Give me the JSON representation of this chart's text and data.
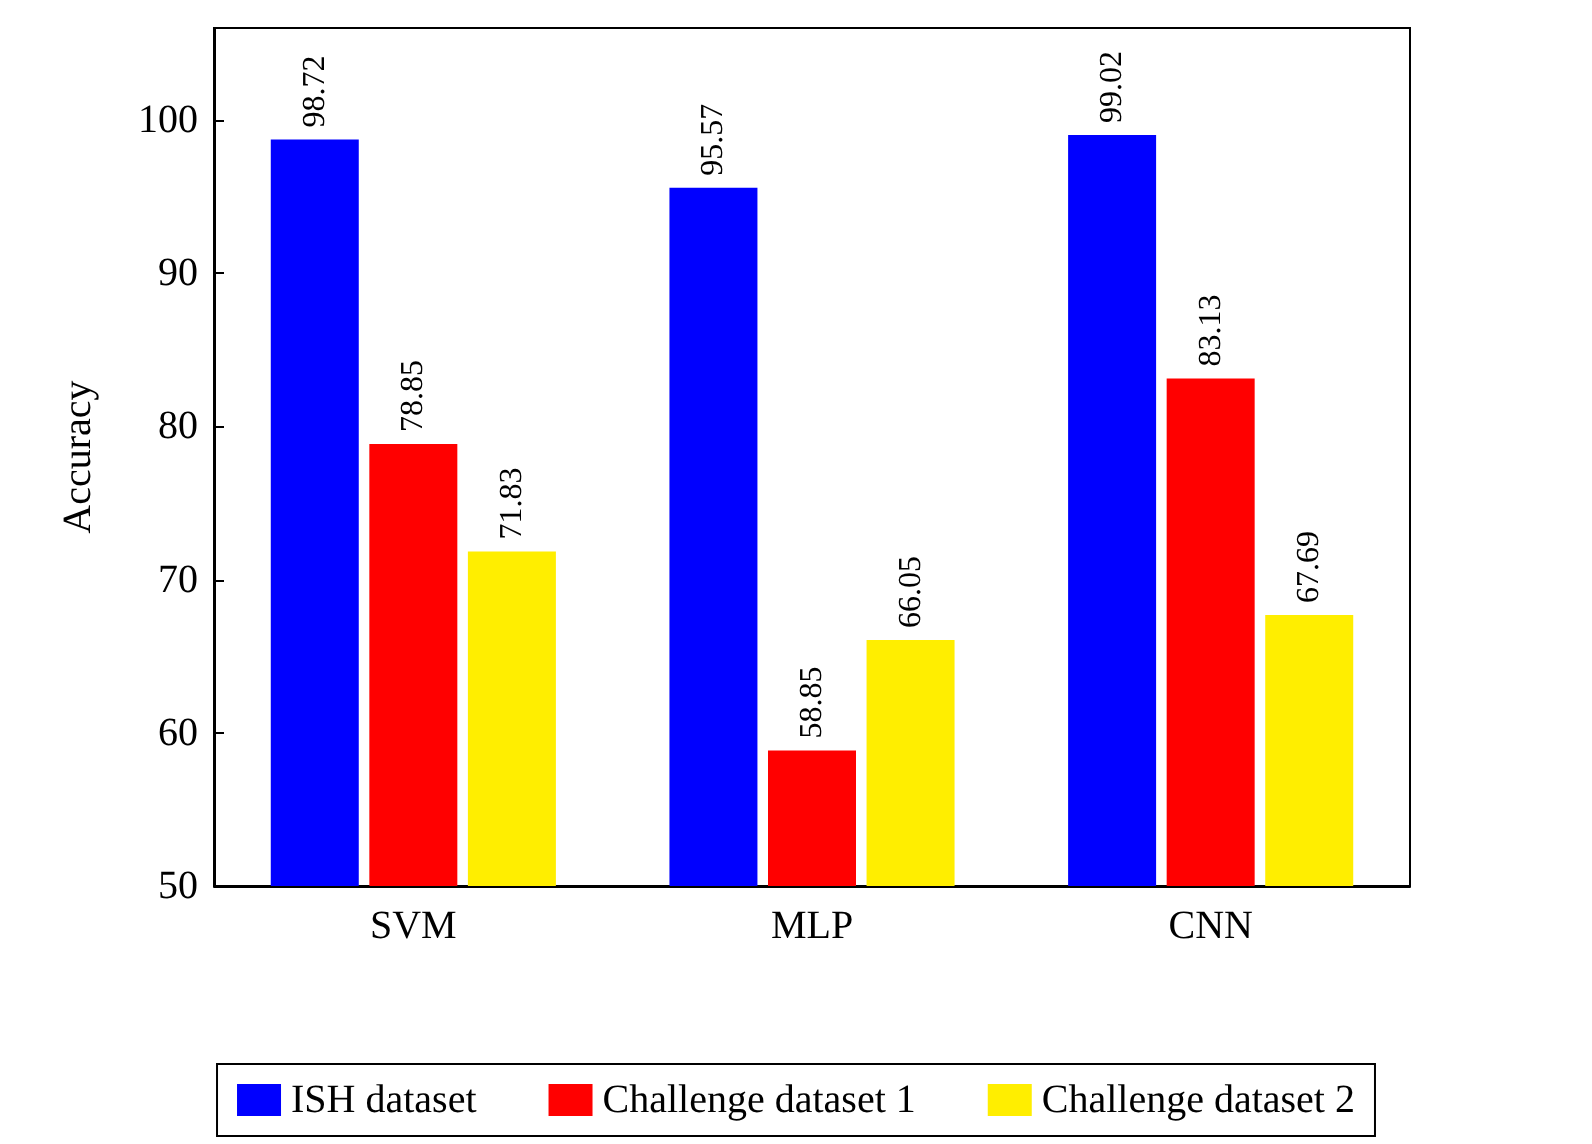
{
  "chart_data": {
    "type": "bar",
    "ylabel": "Accuracy",
    "categories": [
      "SVM",
      "MLP",
      "CNN"
    ],
    "series": [
      {
        "name": "ISH dataset",
        "color": "#0000ff",
        "values": [
          98.72,
          95.57,
          99.02
        ]
      },
      {
        "name": "Challenge dataset 1",
        "color": "#ff0000",
        "values": [
          78.85,
          58.85,
          83.13
        ]
      },
      {
        "name": "Challenge dataset 2",
        "color": "#ffee00",
        "values": [
          71.83,
          66.05,
          67.69
        ]
      }
    ],
    "ylim": [
      50,
      106
    ],
    "yticks": [
      50,
      60,
      70,
      80,
      90,
      100
    ],
    "data_labels": true,
    "legend": "bottom",
    "grid": false
  }
}
